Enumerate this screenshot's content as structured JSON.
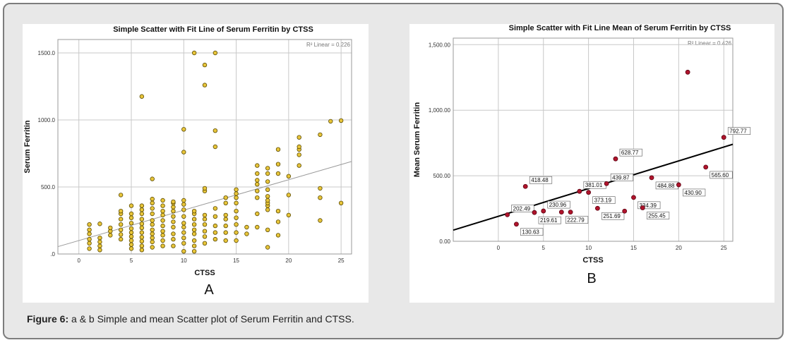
{
  "caption": {
    "label": "Figure 6:",
    "text": " a & b Simple and mean Scatter plot of Serum Ferritin and CTSS."
  },
  "colors": {
    "pointA": "#e8c53a",
    "pointB": "#b0142c",
    "fitA": "#9a9a9a",
    "fitB": "#000000",
    "grid": "#c8c8c8"
  },
  "chart_data": [
    {
      "type": "scatter",
      "panel_label": "A",
      "title": "Simple Scatter with Fit Line of Serum Ferritin by CTSS",
      "xlabel": "CTSS",
      "ylabel": "Serum Ferritin",
      "r2_label": "R² Linear = 0.226",
      "xlim": [
        -2,
        26
      ],
      "ylim": [
        0,
        1600
      ],
      "x_ticks": [
        0,
        5,
        10,
        15,
        20,
        25
      ],
      "x_tick_labels": [
        "0",
        "5",
        "10",
        "15",
        "20",
        "25"
      ],
      "y_ticks": [
        0,
        500,
        1000,
        1500
      ],
      "y_tick_labels": [
        ".0",
        "500.0",
        "1000.0",
        "1500.0"
      ],
      "grid": true,
      "fit_line": {
        "x": [
          -2,
          26
        ],
        "y": [
          55,
          690
        ]
      },
      "points": [
        [
          1,
          40
        ],
        [
          1,
          80
        ],
        [
          1,
          110
        ],
        [
          1,
          150
        ],
        [
          1,
          180
        ],
        [
          1,
          220
        ],
        [
          2,
          30
        ],
        [
          2,
          60
        ],
        [
          2,
          90
        ],
        [
          2,
          120
        ],
        [
          2,
          225
        ],
        [
          3,
          140
        ],
        [
          3,
          170
        ],
        [
          3,
          195
        ],
        [
          4,
          110
        ],
        [
          4,
          145
        ],
        [
          4,
          180
        ],
        [
          4,
          220
        ],
        [
          4,
          260
        ],
        [
          4,
          300
        ],
        [
          4,
          320
        ],
        [
          4,
          440
        ],
        [
          5,
          40
        ],
        [
          5,
          70
        ],
        [
          5,
          100
        ],
        [
          5,
          130
        ],
        [
          5,
          160
        ],
        [
          5,
          190
        ],
        [
          5,
          230
        ],
        [
          5,
          270
        ],
        [
          5,
          300
        ],
        [
          5,
          360
        ],
        [
          6,
          30
        ],
        [
          6,
          60
        ],
        [
          6,
          95
        ],
        [
          6,
          125
        ],
        [
          6,
          160
        ],
        [
          6,
          195
        ],
        [
          6,
          225
        ],
        [
          6,
          260
        ],
        [
          6,
          300
        ],
        [
          6,
          330
        ],
        [
          6,
          360
        ],
        [
          6,
          1175
        ],
        [
          7,
          50
        ],
        [
          7,
          90
        ],
        [
          7,
          120
        ],
        [
          7,
          150
        ],
        [
          7,
          180
        ],
        [
          7,
          220
        ],
        [
          7,
          250
        ],
        [
          7,
          300
        ],
        [
          7,
          340
        ],
        [
          7,
          380
        ],
        [
          7,
          410
        ],
        [
          7,
          560
        ],
        [
          8,
          60
        ],
        [
          8,
          100
        ],
        [
          8,
          140
        ],
        [
          8,
          170
        ],
        [
          8,
          210
        ],
        [
          8,
          250
        ],
        [
          8,
          290
        ],
        [
          8,
          320
        ],
        [
          8,
          360
        ],
        [
          8,
          400
        ],
        [
          9,
          60
        ],
        [
          9,
          110
        ],
        [
          9,
          150
        ],
        [
          9,
          200
        ],
        [
          9,
          240
        ],
        [
          9,
          280
        ],
        [
          9,
          320
        ],
        [
          9,
          350
        ],
        [
          9,
          380
        ],
        [
          9,
          390
        ],
        [
          10,
          20
        ],
        [
          10,
          80
        ],
        [
          10,
          120
        ],
        [
          10,
          160
        ],
        [
          10,
          200
        ],
        [
          10,
          230
        ],
        [
          10,
          280
        ],
        [
          10,
          330
        ],
        [
          10,
          370
        ],
        [
          10,
          400
        ],
        [
          10,
          760
        ],
        [
          10,
          930
        ],
        [
          11,
          20
        ],
        [
          11,
          60
        ],
        [
          11,
          100
        ],
        [
          11,
          150
        ],
        [
          11,
          180
        ],
        [
          11,
          220
        ],
        [
          11,
          260
        ],
        [
          11,
          300
        ],
        [
          11,
          320
        ],
        [
          11,
          1500
        ],
        [
          12,
          80
        ],
        [
          12,
          130
        ],
        [
          12,
          170
        ],
        [
          12,
          220
        ],
        [
          12,
          260
        ],
        [
          12,
          290
        ],
        [
          12,
          470
        ],
        [
          12,
          490
        ],
        [
          12,
          1260
        ],
        [
          12,
          1410
        ],
        [
          13,
          110
        ],
        [
          13,
          160
        ],
        [
          13,
          210
        ],
        [
          13,
          280
        ],
        [
          13,
          340
        ],
        [
          13,
          800
        ],
        [
          13,
          920
        ],
        [
          13,
          1500
        ],
        [
          14,
          100
        ],
        [
          14,
          160
        ],
        [
          14,
          210
        ],
        [
          14,
          260
        ],
        [
          14,
          290
        ],
        [
          14,
          380
        ],
        [
          14,
          420
        ],
        [
          15,
          100
        ],
        [
          15,
          160
        ],
        [
          15,
          220
        ],
        [
          15,
          270
        ],
        [
          15,
          320
        ],
        [
          15,
          380
        ],
        [
          15,
          420
        ],
        [
          15,
          450
        ],
        [
          15,
          480
        ],
        [
          16,
          150
        ],
        [
          16,
          200
        ],
        [
          17,
          200
        ],
        [
          17,
          300
        ],
        [
          17,
          420
        ],
        [
          17,
          470
        ],
        [
          17,
          520
        ],
        [
          17,
          550
        ],
        [
          17,
          600
        ],
        [
          17,
          660
        ],
        [
          18,
          50
        ],
        [
          18,
          180
        ],
        [
          18,
          330
        ],
        [
          18,
          360
        ],
        [
          18,
          380
        ],
        [
          18,
          400
        ],
        [
          18,
          430
        ],
        [
          18,
          480
        ],
        [
          18,
          540
        ],
        [
          18,
          600
        ],
        [
          18,
          640
        ],
        [
          19,
          140
        ],
        [
          19,
          240
        ],
        [
          19,
          320
        ],
        [
          19,
          600
        ],
        [
          19,
          670
        ],
        [
          19,
          780
        ],
        [
          20,
          290
        ],
        [
          20,
          440
        ],
        [
          20,
          580
        ],
        [
          21,
          660
        ],
        [
          21,
          740
        ],
        [
          21,
          780
        ],
        [
          21,
          800
        ],
        [
          21,
          870
        ],
        [
          23,
          250
        ],
        [
          23,
          420
        ],
        [
          23,
          490
        ],
        [
          23,
          890
        ],
        [
          24,
          990
        ],
        [
          25,
          380
        ],
        [
          25,
          995
        ]
      ]
    },
    {
      "type": "scatter",
      "panel_label": "B",
      "title": "Simple Scatter with Fit Line Mean of Serum Ferritin by CTSS",
      "xlabel": "CTSS",
      "ylabel": "Mean Serum Ferritin",
      "r2_label": "R² Linear = 0.426",
      "xlim": [
        -5,
        26
      ],
      "ylim": [
        0,
        1550
      ],
      "x_ticks": [
        0,
        5,
        10,
        15,
        20,
        25
      ],
      "x_tick_labels": [
        "0",
        "5",
        "10",
        "15",
        "20",
        "25"
      ],
      "y_ticks": [
        0,
        500,
        1000,
        1500
      ],
      "y_tick_labels": [
        "0.00",
        "500.00",
        "1,000.00",
        "1,500.00"
      ],
      "grid": true,
      "fit_line": {
        "x": [
          -5,
          26
        ],
        "y": [
          85,
          740
        ]
      },
      "points": [
        {
          "x": 1,
          "y": 202.49,
          "label": "202.49"
        },
        {
          "x": 2,
          "y": 130.63,
          "label": "130.63"
        },
        {
          "x": 3,
          "y": 418.48,
          "label": "418.48"
        },
        {
          "x": 4,
          "y": 219.61,
          "label": "219.61"
        },
        {
          "x": 5,
          "y": 230.96,
          "label": "230.96"
        },
        {
          "x": 7,
          "y": 222.79,
          "label": "222.79"
        },
        {
          "x": 8,
          "y": 222.79,
          "label": ""
        },
        {
          "x": 9,
          "y": 381.01,
          "label": "381.01"
        },
        {
          "x": 10,
          "y": 373.19,
          "label": "373.19"
        },
        {
          "x": 11,
          "y": 251.69,
          "label": "251.69"
        },
        {
          "x": 12,
          "y": 439.87,
          "label": "439.87"
        },
        {
          "x": 13,
          "y": 628.77,
          "label": "628.77"
        },
        {
          "x": 14,
          "y": 230.0,
          "label": ""
        },
        {
          "x": 15,
          "y": 334.39,
          "label": "334.39"
        },
        {
          "x": 16,
          "y": 255.45,
          "label": "255.45"
        },
        {
          "x": 17,
          "y": 484.88,
          "label": "484.88"
        },
        {
          "x": 20,
          "y": 430.9,
          "label": "430.90"
        },
        {
          "x": 21,
          "y": 1290,
          "label": ""
        },
        {
          "x": 23,
          "y": 565.6,
          "label": "565.60"
        },
        {
          "x": 25,
          "y": 792.77,
          "label": "792.77"
        }
      ]
    }
  ]
}
